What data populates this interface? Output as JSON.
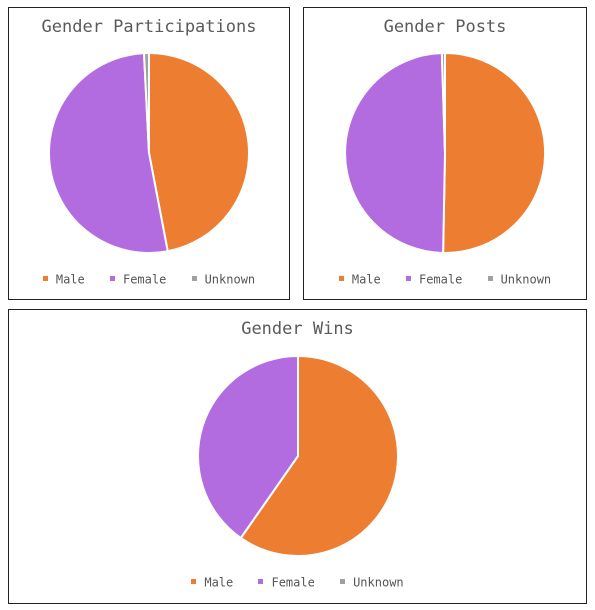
{
  "colors": {
    "male": "#ed7d31",
    "female": "#b36be0",
    "unknown": "#a0a0a0"
  },
  "chart_data": [
    {
      "type": "pie",
      "title": "Gender Participations",
      "legend_position": "bottom",
      "labels": [
        "Male",
        "Female",
        "Unknown"
      ],
      "values": [
        47,
        52.2,
        0.8
      ],
      "colors": [
        "#ed7d31",
        "#b36be0",
        "#a0a0a0"
      ],
      "start_angle_deg": 0
    },
    {
      "type": "pie",
      "title": "Gender Posts",
      "legend_position": "bottom",
      "labels": [
        "Male",
        "Female",
        "Unknown"
      ],
      "values": [
        50.3,
        49.2,
        0.5
      ],
      "colors": [
        "#ed7d31",
        "#b36be0",
        "#a0a0a0"
      ],
      "start_angle_deg": 0
    },
    {
      "type": "pie",
      "title": "Gender Wins",
      "legend_position": "bottom",
      "labels": [
        "Male",
        "Female",
        "Unknown"
      ],
      "values": [
        59.7,
        40.3,
        0
      ],
      "colors": [
        "#ed7d31",
        "#b36be0",
        "#a0a0a0"
      ],
      "start_angle_deg": 0
    }
  ]
}
